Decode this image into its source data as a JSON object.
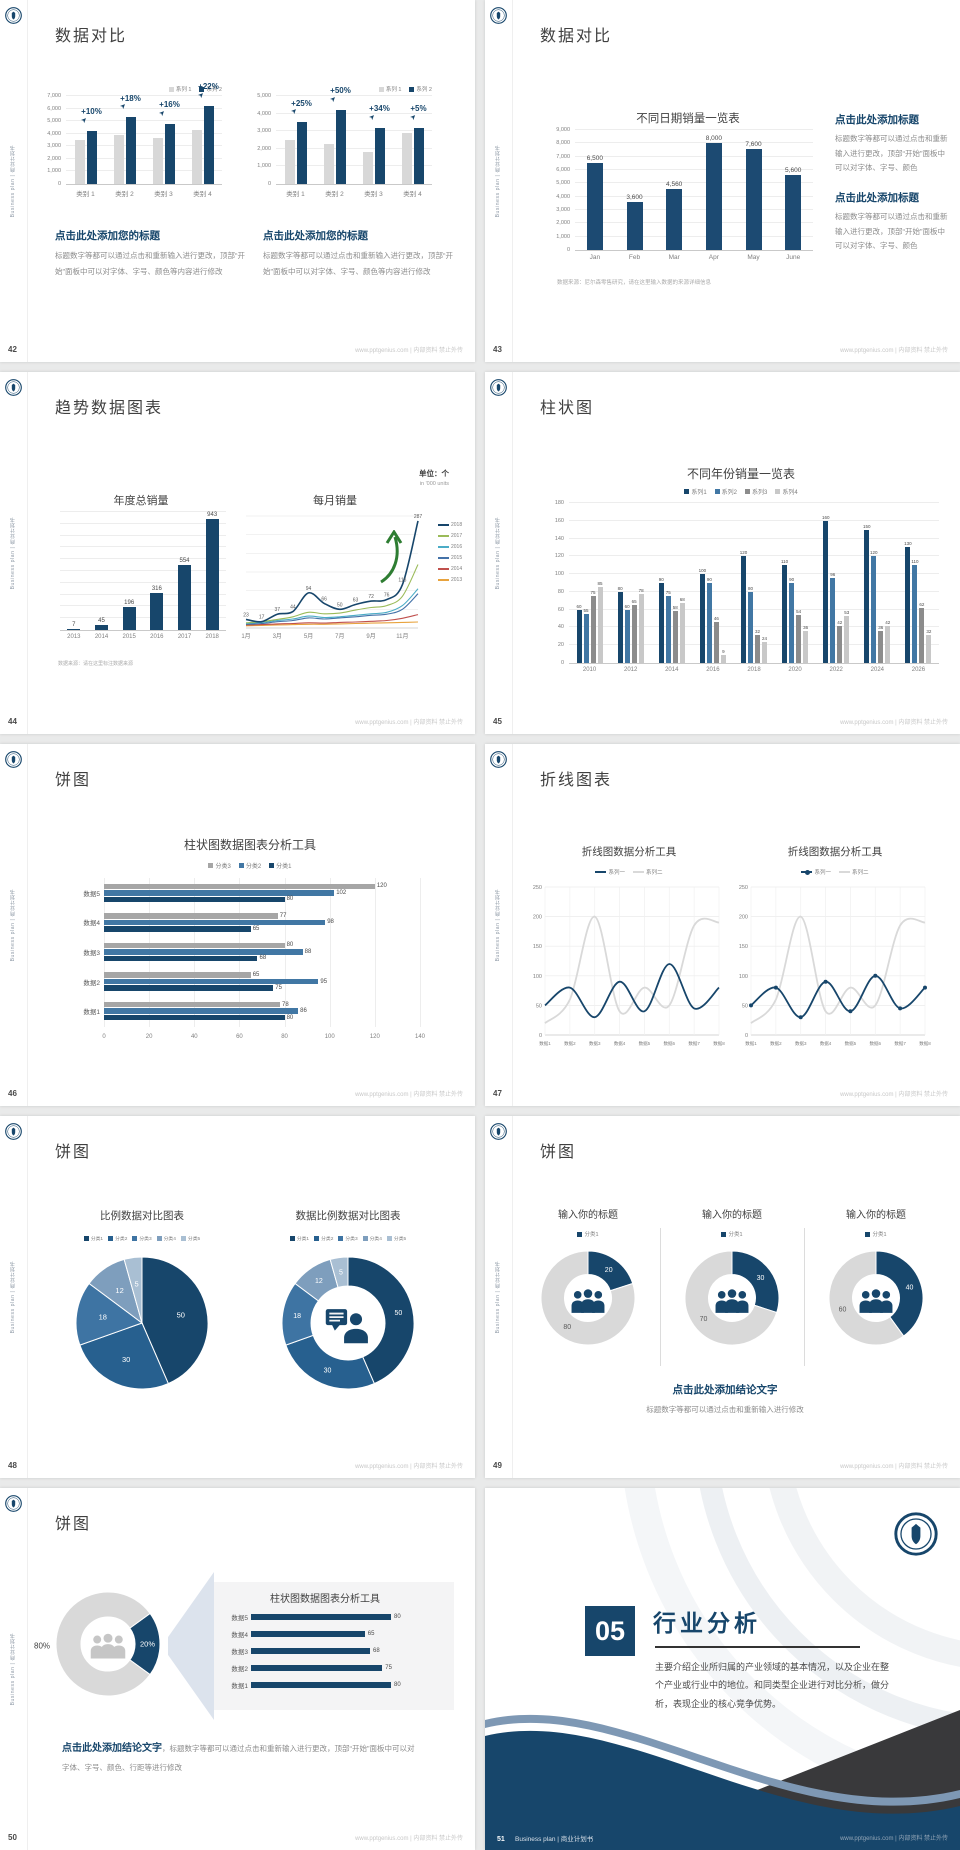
{
  "page": {
    "footer_url": "www.pptgenius.com | 内部资料 禁止外传",
    "sidebar_text": "Business plan | 商业计划书"
  },
  "slides": {
    "s42": {
      "page_no": "42",
      "title": "数据对比",
      "legend": [
        {
          "t": "系列 1",
          "c": "#D8D8D8"
        },
        {
          "t": "系列 2",
          "c": "#17466B"
        }
      ],
      "chartA": {
        "ymax": 7000,
        "yticks": [
          "0",
          "1,000",
          "2,000",
          "3,000",
          "4,000",
          "5,000",
          "6,000",
          "7,000"
        ],
        "cats": [
          "类别 1",
          "类别 2",
          "类别 3",
          "类别 4"
        ],
        "series": [
          {
            "color": "#D8D8D8",
            "vals": [
              3500,
              3900,
              3700,
              4300
            ]
          },
          {
            "color": "#17466B",
            "vals": [
              4200,
              5300,
              4800,
              6200
            ],
            "ann": [
              "+10%",
              "+18%",
              "+16%",
              "+22%"
            ]
          }
        ]
      },
      "chartB": {
        "ymax": 5000,
        "yticks": [
          "0",
          "1,000",
          "2,000",
          "3,000",
          "4,000",
          "5,000"
        ],
        "cats": [
          "类别 1",
          "类别 2",
          "类别 3",
          "类别 4"
        ],
        "series": [
          {
            "color": "#D8D8D8",
            "vals": [
              2500,
              2300,
              1800,
              2900
            ]
          },
          {
            "color": "#17466B",
            "vals": [
              3500,
              4200,
              3200,
              3200
            ],
            "ann": [
              "+25%",
              "+50%",
              "+34%",
              "+5%"
            ]
          }
        ]
      },
      "blockA": {
        "heading": "点击此处添加您的标题",
        "body": "标题数字等都可以通过点击和重新输入进行更改，顶部“开始”面板中可以对字体、字号、颜色等内容进行修改"
      },
      "blockB": {
        "heading": "点击此处添加您的标题",
        "body": "标题数字等都可以通过点击和重新输入进行更改，顶部“开始”面板中可以对字体、字号、颜色等内容进行修改"
      }
    },
    "s43": {
      "page_no": "43",
      "title": "数据对比",
      "chart_title": "不同日期销量一览表",
      "chart": {
        "ymax": 9000,
        "yticks": [
          "0",
          "1,000",
          "2,000",
          "3,000",
          "4,000",
          "5,000",
          "6,000",
          "7,000",
          "8,000",
          "9,000"
        ],
        "cats": [
          "Jan",
          "Feb",
          "Mar",
          "Apr",
          "May",
          "June"
        ],
        "series": [
          {
            "color": "#1C4A72",
            "vals": [
              6500,
              3600,
              4560,
              8000,
              7600,
              5600
            ],
            "dl": true,
            "fmt": "comma"
          }
        ]
      },
      "source": "数据来源：尼尔森零售研究，请在这里输入数据的来源详细信息",
      "block1": {
        "heading": "点击此处添加标题",
        "body": "标题数字等都可以通过点击和重新输入进行更改，顶部“开始”面板中可以对字体、字号、颜色"
      },
      "block2": {
        "heading": "点击此处添加标题",
        "body": "标题数字等都可以通过点击和重新输入进行更改，顶部“开始”面板中可以对字体、字号、颜色"
      }
    },
    "s44": {
      "page_no": "44",
      "title": "趋势数据图表",
      "unit_label": "单位：个",
      "unit_sub": "in '000 units",
      "left_title": "年度总销量",
      "right_title": "每月销量",
      "bar": {
        "ymax": 1000,
        "gridN": 10,
        "cats": [
          "2013",
          "2014",
          "2015",
          "2016",
          "2017",
          "2018"
        ],
        "series": [
          {
            "color": "#17466B",
            "vals": [
              7,
              45,
              196,
              316,
              554,
              943
            ],
            "dl": true
          }
        ]
      },
      "line": {
        "ymax": 300,
        "gridN": 6,
        "xticks": [
          {
            "i": 0,
            "t": "1月"
          },
          {
            "i": 2,
            "t": "3月"
          },
          {
            "i": 4,
            "t": "5月"
          },
          {
            "i": 6,
            "t": "7月"
          },
          {
            "i": 8,
            "t": "9月"
          },
          {
            "i": 10,
            "t": "11月"
          }
        ],
        "series": [
          {
            "name": "2018",
            "color": "#17466B",
            "w": 1.6,
            "dl": true,
            "vals": [
              23,
              17,
              37,
              44,
              94,
              66,
              50,
              63,
              72,
              76,
              116,
              287
            ]
          },
          {
            "name": "2017",
            "color": "#9BBB59",
            "w": 1.1,
            "vals": [
              14,
              17,
              23,
              30,
              42,
              38,
              40,
              48,
              55,
              60,
              85,
              170
            ]
          },
          {
            "name": "2016",
            "color": "#4BACC6",
            "w": 1.1,
            "vals": [
              12,
              15,
              20,
              24,
              32,
              28,
              30,
              34,
              38,
              42,
              60,
              105
            ]
          },
          {
            "name": "2015",
            "color": "#4472A8",
            "w": 1.1,
            "vals": [
              10,
              12,
              17,
              20,
              27,
              24,
              27,
              30,
              34,
              37,
              50,
              92
            ]
          },
          {
            "name": "2014",
            "color": "#C0504D",
            "w": 1.1,
            "vals": [
              8,
              9,
              11,
              12,
              14,
              13,
              15,
              16,
              18,
              20,
              26,
              36
            ]
          },
          {
            "name": "2013",
            "color": "#E8A33D",
            "w": 1.1,
            "vals": [
              6,
              7,
              8,
              9,
              10,
              10,
              11,
              12,
              13,
              14,
              15,
              16
            ]
          }
        ]
      },
      "source": "数据来源：请在这里标注数据来源"
    },
    "s45": {
      "page_no": "45",
      "title": "柱状图",
      "chart_title": "不同年份销量一览表",
      "legend": [
        {
          "t": "系列1",
          "c": "#17466B"
        },
        {
          "t": "系列2",
          "c": "#4177A4"
        },
        {
          "t": "系列3",
          "c": "#8C8C8C"
        },
        {
          "t": "系列4",
          "c": "#C8C8C8"
        }
      ],
      "chart": {
        "ymax": 180,
        "yticks": [
          "0",
          "20",
          "40",
          "60",
          "80",
          "100",
          "120",
          "140",
          "160",
          "180"
        ],
        "cats": [
          "2010",
          "2012",
          "2014",
          "2016",
          "2018",
          "2020",
          "2022",
          "2024",
          "2026"
        ],
        "series": [
          {
            "color": "#17466B",
            "dl": true,
            "vals": [
              60,
              80,
              90,
              100,
              120,
              110,
              160,
              150,
              130
            ]
          },
          {
            "color": "#4177A4",
            "dl": true,
            "vals": [
              55,
              60,
              75,
              90,
              80,
              90,
              96,
              120,
              110
            ]
          },
          {
            "color": "#8C8C8C",
            "dl": true,
            "vals": [
              75,
              65,
              58,
              46,
              32,
              54,
              42,
              36,
              62
            ]
          },
          {
            "color": "#C8C8C8",
            "dl": true,
            "vals": [
              85,
              78,
              68,
              9,
              24,
              36,
              53,
              42,
              32
            ]
          }
        ]
      }
    },
    "s46": {
      "page_no": "46",
      "title": "饼图",
      "chart_title": "柱状图数据图表分析工具",
      "legend": [
        {
          "t": "分类3",
          "c": "#A6A6A6"
        },
        {
          "t": "分类2",
          "c": "#4177A4"
        },
        {
          "t": "分类1",
          "c": "#17466B"
        }
      ],
      "chart": {
        "xmax": 140,
        "xticks": [
          "0",
          "20",
          "40",
          "60",
          "80",
          "100",
          "120",
          "140"
        ],
        "cats": [
          "数据5",
          "数据4",
          "数据3",
          "数据2",
          "数据1"
        ],
        "rows": [
          [
            120,
            102,
            80
          ],
          [
            77,
            98,
            65
          ],
          [
            80,
            88,
            68
          ],
          [
            65,
            95,
            75
          ],
          [
            78,
            86,
            80
          ]
        ],
        "rowColors": [
          "#A6A6A6",
          "#4177A4",
          "#17466B"
        ]
      }
    },
    "s47": {
      "page_no": "47",
      "title": "折线图表",
      "chart1": {
        "title": "折线图数据分析工具",
        "legend": [
          {
            "t": "系列一",
            "c": "#17466B",
            "type": "line"
          },
          {
            "t": "系列二",
            "c": "#D9D9D9",
            "type": "line"
          }
        ],
        "ymax": 250,
        "yticks": [
          "0",
          "50",
          "100",
          "150",
          "200",
          "250"
        ],
        "xticks": [
          {
            "i": 0,
            "t": "数据1"
          },
          {
            "i": 1,
            "t": "数据2"
          },
          {
            "i": 2,
            "t": "数据3"
          },
          {
            "i": 3,
            "t": "数据4"
          },
          {
            "i": 4,
            "t": "数据5"
          },
          {
            "i": 5,
            "t": "数据6"
          },
          {
            "i": 6,
            "t": "数据7"
          },
          {
            "i": 7,
            "t": "数据8"
          }
        ],
        "series": [
          {
            "color": "#17466B",
            "w": 1.8,
            "vals": [
              50,
              80,
              30,
              90,
              40,
              120,
              45,
              80
            ]
          },
          {
            "color": "#D9D9D9",
            "w": 1.8,
            "vals": [
              20,
              60,
              200,
              40,
              80,
              50,
              185,
              190
            ]
          }
        ]
      },
      "chart2": {
        "title": "折线图数据分析工具",
        "legend": [
          {
            "t": "系列一",
            "c": "#17466B",
            "type": "linedot"
          },
          {
            "t": "系列二",
            "c": "#D9D9D9",
            "type": "line"
          }
        ],
        "ymax": 250,
        "yticks": [
          "0",
          "50",
          "100",
          "150",
          "200",
          "250"
        ],
        "xticks": [
          {
            "i": 0,
            "t": "数据1"
          },
          {
            "i": 1,
            "t": "数据2"
          },
          {
            "i": 2,
            "t": "数据3"
          },
          {
            "i": 3,
            "t": "数据4"
          },
          {
            "i": 4,
            "t": "数据5"
          },
          {
            "i": 5,
            "t": "数据6"
          },
          {
            "i": 6,
            "t": "数据7"
          },
          {
            "i": 7,
            "t": "数据8"
          }
        ],
        "series": [
          {
            "color": "#17466B",
            "w": 1.8,
            "markers": true,
            "vals": [
              50,
              80,
              30,
              90,
              40,
              100,
              45,
              80
            ]
          },
          {
            "color": "#D9D9D9",
            "w": 1.8,
            "vals": [
              20,
              60,
              200,
              40,
              80,
              50,
              185,
              190
            ]
          }
        ]
      }
    },
    "s48": {
      "page_no": "48",
      "title": "饼图",
      "left": {
        "title": "比例数据对比图表",
        "legend": [
          {
            "t": "分类1",
            "c": "#17466B"
          },
          {
            "t": "分类2",
            "c": "#27608F"
          },
          {
            "t": "分类3",
            "c": "#3E74A3"
          },
          {
            "t": "分类4",
            "c": "#7E9EBD"
          },
          {
            "t": "分类5",
            "c": "#A9BFD3"
          }
        ],
        "values": [
          50,
          30,
          18,
          12,
          5
        ],
        "colors": [
          "#17466B",
          "#27608F",
          "#3E74A3",
          "#7E9EBD",
          "#A9BFD3"
        ],
        "labels": [
          {
            "t": "50",
            "c": "#fff"
          },
          {
            "t": "30",
            "c": "#fff"
          },
          {
            "t": "18",
            "c": "#fff"
          },
          {
            "t": "12",
            "c": "#fff"
          },
          {
            "t": "5",
            "c": "#fff"
          }
        ]
      },
      "right": {
        "title": "数据比例数据对比图表",
        "legend": [
          {
            "t": "分类1",
            "c": "#17466B"
          },
          {
            "t": "分类2",
            "c": "#27608F"
          },
          {
            "t": "分类3",
            "c": "#3E74A3"
          },
          {
            "t": "分类4",
            "c": "#7E9EBD"
          },
          {
            "t": "分类5",
            "c": "#A9BFD3"
          }
        ],
        "values": [
          50,
          30,
          18,
          12,
          5
        ],
        "colors": [
          "#17466B",
          "#27608F",
          "#3E74A3",
          "#7E9EBD",
          "#A9BFD3"
        ],
        "labels": [
          {
            "t": "50",
            "c": "#fff"
          },
          {
            "t": "30",
            "c": "#fff"
          },
          {
            "t": "18",
            "c": "#fff"
          },
          {
            "t": "12",
            "c": "#fff"
          },
          {
            "t": "5",
            "c": "#fff"
          }
        ],
        "icon": "man-speech-icon"
      }
    },
    "s49": {
      "page_no": "49",
      "title": "饼图",
      "donut_titles": [
        "输入你的标题",
        "输入你的标题",
        "输入你的标题"
      ],
      "legend": [
        {
          "t": "分类1",
          "c": "#17466B"
        }
      ],
      "colors": [
        "#17466B",
        "#D9D9D9"
      ],
      "donuts": [
        {
          "values": [
            20,
            80
          ],
          "labels": [
            {
              "t": "20",
              "c": "#fff"
            },
            {
              "t": "80",
              "c": "#595959"
            }
          ],
          "icon": "people-icon"
        },
        {
          "values": [
            30,
            70
          ],
          "labels": [
            {
              "t": "30",
              "c": "#fff"
            },
            {
              "t": "70",
              "c": "#595959"
            }
          ],
          "icon": "people-icon"
        },
        {
          "values": [
            40,
            60
          ],
          "labels": [
            {
              "t": "40",
              "c": "#fff"
            },
            {
              "t": "60",
              "c": "#595959"
            }
          ],
          "icon": "people-icon"
        }
      ],
      "conclusion_heading": "点击此处添加结论文字",
      "conclusion_body": "标题数字等都可以通过点击和重新输入进行修改"
    },
    "s50": {
      "page_no": "50",
      "title": "饼图",
      "donut": {
        "values": [
          20,
          80
        ],
        "colors": [
          "#17466B",
          "#D9D9D9"
        ],
        "labels": [
          {
            "t": "20%",
            "c": "#fff"
          },
          {
            "t": "",
            "c": ""
          }
        ],
        "start": -36,
        "inner": 0.52,
        "icon": "people-gray-icon"
      },
      "outside_label": "80%",
      "panel": {
        "title": "柱状图数据图表分析工具",
        "cats": [
          "数据5",
          "数据4",
          "数据3",
          "数据2",
          "数据1"
        ],
        "vals": [
          80,
          65,
          68,
          75,
          80
        ],
        "xmax": 100
      },
      "conclusion_heading": "点击此处添加结论文字",
      "conclusion_body": "，标题数字等都可以通过点击和重新输入进行更改，顶部“开始”面板中可以对字体、字号、颜色、行距等进行修改"
    },
    "s51": {
      "page_no": "51",
      "section_no": "05",
      "heading": "行业分析",
      "body": "主要介绍企业所归属的产业领域的基本情况，以及企业在整个产业或行业中的地位。和同类型企业进行对比分析，做分析，表现企业的核心竞争优势。",
      "footer_left": "Business plan | 商业计划书"
    }
  }
}
